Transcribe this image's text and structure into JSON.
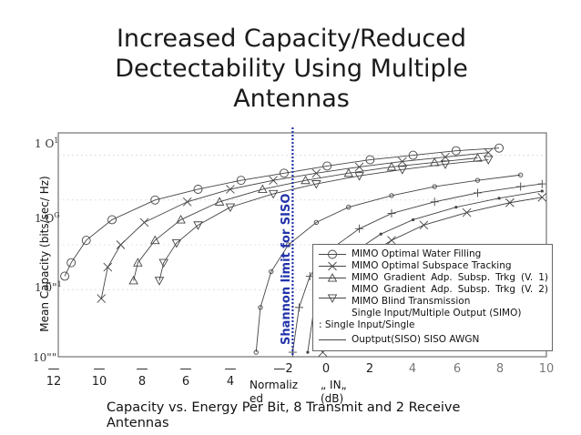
{
  "title": "Increased Capacity/Reduced Dectectability Using Multiple Antennas",
  "caption": "Capacity vs. Energy Per Bit, 8 Transmit and 2 Receive Antennas",
  "colors": {
    "axis": "#333333",
    "curve": "#444444",
    "shannon": "#2233aa"
  },
  "chart_data": {
    "type": "line",
    "ylabel": "Mean Capacity (bits/sec/ Hz)",
    "xlabel_part1": "Normaliz ed",
    "xlabel_part2": "„ IN„ (dB)",
    "x_ticks": [
      "12",
      "10",
      "8",
      "6",
      "4",
      "—2",
      "0",
      "2",
      "4",
      "6",
      "8",
      "10"
    ],
    "x_dashes": [
      "—",
      "—",
      "—",
      "—",
      "—"
    ],
    "y_ticks": [
      "1 O",
      "1 O",
      "1 0\"",
      "10\"\""
    ],
    "y_tick_sups": [
      "1",
      "G",
      "1",
      ""
    ],
    "annotation": "Shannon limit for SISO",
    "legend": [
      {
        "symbol": "circle",
        "label": "MIMO Optimal Water Filling"
      },
      {
        "symbol": "x",
        "label": "MIMO Optimal Subspace Tracking"
      },
      {
        "symbol": "triangle-up",
        "label": "MIMO Gradient Adp. Subsp. Trkg (V. 1) MIMO Gradient Adp. Subsp. Trkg (V. 2) MIMO Blind Transmission"
      },
      {
        "symbol": "triangle-down",
        "label": ""
      },
      {
        "symbol": "none",
        "label": "Single Input/Multiple Output (SIMO)"
      },
      {
        "symbol": "line",
        "label": "Ouptput(SISO) SISO AWGN"
      }
    ],
    "legend_extra": ": Single Input/Single",
    "series": [
      {
        "symbol": "circle",
        "points": [
          [
            -12.2,
            0.15
          ],
          [
            -11.9,
            0.3
          ],
          [
            -11.2,
            0.55
          ],
          [
            -10.0,
            0.78
          ],
          [
            -8.0,
            1.0
          ],
          [
            -6.0,
            1.12
          ],
          [
            -4.0,
            1.22
          ],
          [
            -2.0,
            1.3
          ],
          [
            0.0,
            1.38
          ],
          [
            2.0,
            1.45
          ],
          [
            4.0,
            1.5
          ],
          [
            6.0,
            1.55
          ],
          [
            8.0,
            1.58
          ]
        ]
      },
      {
        "symbol": "x",
        "points": [
          [
            -10.5,
            -0.1
          ],
          [
            -10.2,
            0.25
          ],
          [
            -9.6,
            0.5
          ],
          [
            -8.5,
            0.75
          ],
          [
            -6.5,
            0.98
          ],
          [
            -4.5,
            1.12
          ],
          [
            -2.5,
            1.22
          ],
          [
            -0.5,
            1.3
          ],
          [
            1.5,
            1.37
          ],
          [
            3.5,
            1.43
          ],
          [
            5.5,
            1.48
          ],
          [
            7.5,
            1.53
          ]
        ]
      },
      {
        "symbol": "triangle-up",
        "points": [
          [
            -9.0,
            0.1
          ],
          [
            -8.8,
            0.3
          ],
          [
            -8.0,
            0.55
          ],
          [
            -6.8,
            0.78
          ],
          [
            -5.0,
            0.98
          ],
          [
            -3.0,
            1.12
          ],
          [
            -1.0,
            1.22
          ],
          [
            1.0,
            1.3
          ],
          [
            3.0,
            1.37
          ],
          [
            5.0,
            1.42
          ],
          [
            7.0,
            1.47
          ]
        ]
      },
      {
        "symbol": "triangle-down",
        "points": [
          [
            -7.8,
            0.1
          ],
          [
            -7.6,
            0.3
          ],
          [
            -7.0,
            0.52
          ],
          [
            -6.0,
            0.72
          ],
          [
            -4.5,
            0.92
          ],
          [
            -2.5,
            1.07
          ],
          [
            -0.5,
            1.18
          ],
          [
            1.5,
            1.27
          ],
          [
            3.5,
            1.34
          ],
          [
            5.5,
            1.4
          ],
          [
            7.5,
            1.45
          ]
        ]
      },
      {
        "symbol": "circle-small",
        "points": [
          [
            -3.3,
            -0.7
          ],
          [
            -3.1,
            -0.2
          ],
          [
            -2.6,
            0.2
          ],
          [
            -1.8,
            0.5
          ],
          [
            -0.5,
            0.75
          ],
          [
            1.0,
            0.92
          ],
          [
            3.0,
            1.05
          ],
          [
            5.0,
            1.15
          ],
          [
            7.0,
            1.22
          ],
          [
            9.0,
            1.28
          ]
        ]
      },
      {
        "symbol": "plus",
        "points": [
          [
            -1.6,
            -0.7
          ],
          [
            -1.3,
            -0.2
          ],
          [
            -0.8,
            0.15
          ],
          [
            0.0,
            0.42
          ],
          [
            1.5,
            0.68
          ],
          [
            3.0,
            0.85
          ],
          [
            5.0,
            0.98
          ],
          [
            7.0,
            1.08
          ],
          [
            9.0,
            1.15
          ],
          [
            10.0,
            1.18
          ]
        ]
      },
      {
        "symbol": "dot",
        "points": [
          [
            -0.9,
            -0.7
          ],
          [
            -0.6,
            -0.2
          ],
          [
            0.0,
            0.12
          ],
          [
            1.0,
            0.38
          ],
          [
            2.5,
            0.62
          ],
          [
            4.0,
            0.78
          ],
          [
            6.0,
            0.92
          ],
          [
            8.0,
            1.02
          ],
          [
            10.0,
            1.1
          ]
        ]
      },
      {
        "symbol": "x",
        "points": [
          [
            -0.2,
            -0.7
          ],
          [
            0.1,
            -0.25
          ],
          [
            0.6,
            0.08
          ],
          [
            1.5,
            0.32
          ],
          [
            3.0,
            0.55
          ],
          [
            4.5,
            0.72
          ],
          [
            6.5,
            0.86
          ],
          [
            8.5,
            0.97
          ],
          [
            10.0,
            1.03
          ]
        ]
      }
    ],
    "shannon_x": -1.6,
    "xlim": [
      -12.5,
      10.2
    ],
    "ylim": [
      -0.75,
      1.75
    ]
  }
}
